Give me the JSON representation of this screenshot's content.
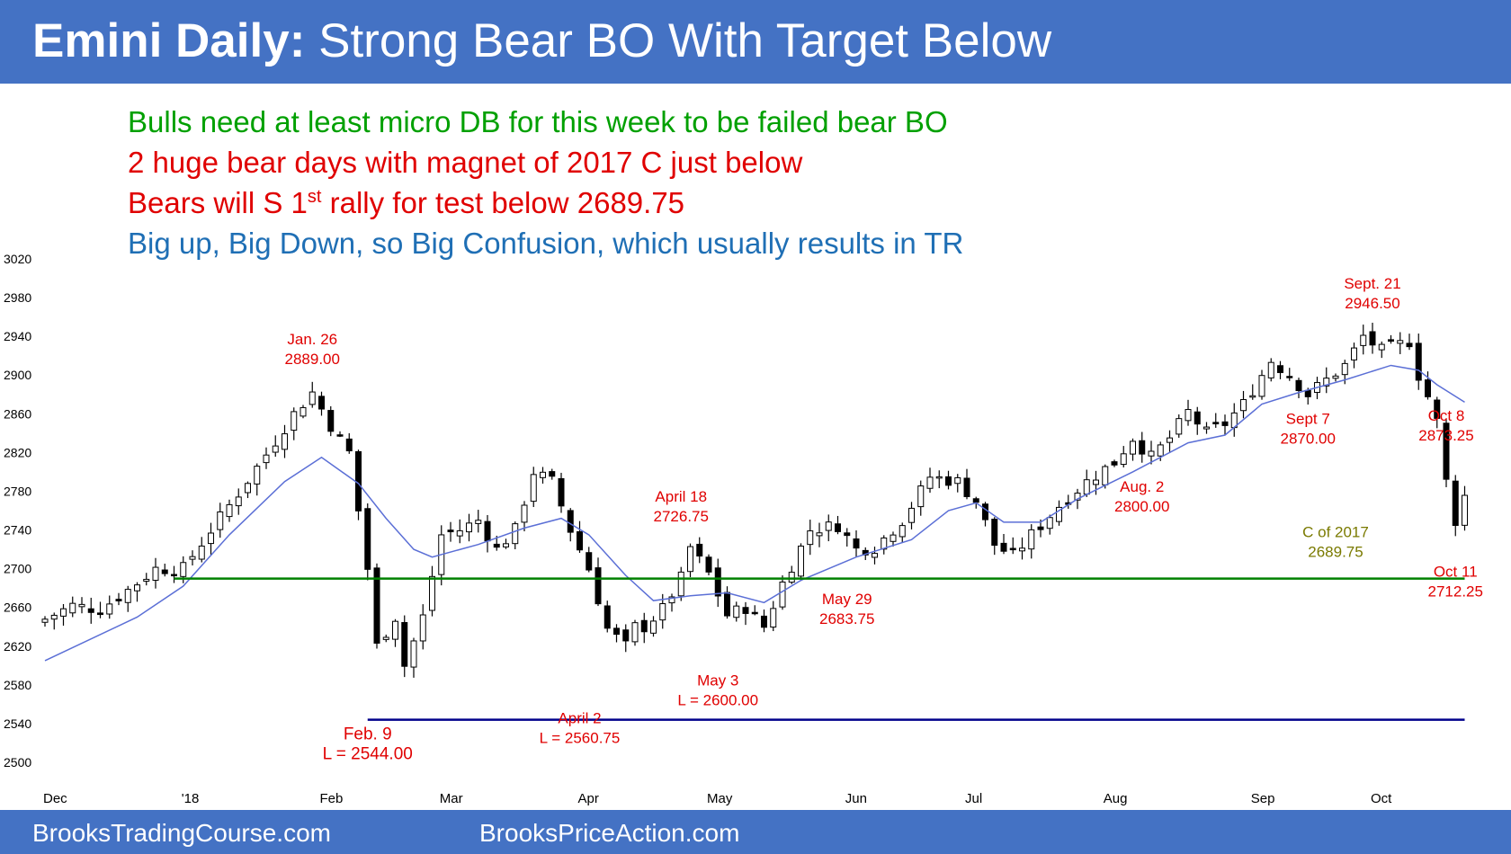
{
  "header": {
    "title_bold": "Emini Daily:",
    "title_rest": "Strong Bear BO With Target Below",
    "bg_color": "#4472c4"
  },
  "notes": [
    {
      "text": "Bulls need at least micro DB for this week to be failed bear BO",
      "color": "#00a000"
    },
    {
      "text": "2 huge bear days with magnet of 2017 C just below",
      "color": "#e00000"
    },
    {
      "text_pre": "Bears will S 1",
      "text_sup": "st",
      "text_post": " rally for test below 2689.75",
      "color": "#e00000"
    },
    {
      "text": "Big up, Big Down, so Big Confusion, which usually results in TR",
      "color": "#1f6fb5"
    }
  ],
  "footer": {
    "left": "BrooksTradingCourse.com",
    "right": "BrooksPriceAction.com"
  },
  "chart_data": {
    "type": "candlestick",
    "y_ticks": [
      3020,
      2980,
      2940,
      2900,
      2860,
      2820,
      2780,
      2740,
      2700,
      2660,
      2620,
      2580,
      2540,
      2500
    ],
    "x_labels": [
      "Dec",
      "'18",
      "Feb",
      "Mar",
      "Apr",
      "May",
      "Jun",
      "Jul",
      "Aug",
      "Sep",
      "Oct"
    ],
    "x_label_bars": [
      0,
      15,
      30,
      43,
      58,
      72,
      87,
      100,
      115,
      131,
      144
    ],
    "ylim": [
      2500,
      3020
    ],
    "bars_total": 151,
    "anchors": [
      [
        0,
        2648
      ],
      [
        3,
        2662
      ],
      [
        6,
        2658
      ],
      [
        9,
        2678
      ],
      [
        12,
        2700
      ],
      [
        15,
        2700
      ],
      [
        18,
        2740
      ],
      [
        21,
        2778
      ],
      [
        24,
        2818
      ],
      [
        27,
        2860
      ],
      [
        29,
        2882
      ],
      [
        31,
        2848
      ],
      [
        33,
        2820
      ],
      [
        35,
        2700
      ],
      [
        36,
        2620
      ],
      [
        38,
        2650
      ],
      [
        39,
        2600
      ],
      [
        41,
        2650
      ],
      [
        43,
        2735
      ],
      [
        45,
        2740
      ],
      [
        47,
        2750
      ],
      [
        49,
        2720
      ],
      [
        51,
        2740
      ],
      [
        53,
        2800
      ],
      [
        55,
        2790
      ],
      [
        57,
        2740
      ],
      [
        59,
        2700
      ],
      [
        61,
        2638
      ],
      [
        63,
        2620
      ],
      [
        64,
        2640
      ],
      [
        65,
        2640
      ],
      [
        67,
        2658
      ],
      [
        69,
        2690
      ],
      [
        70,
        2722
      ],
      [
        72,
        2695
      ],
      [
        74,
        2652
      ],
      [
        76,
        2660
      ],
      [
        78,
        2640
      ],
      [
        80,
        2685
      ],
      [
        83,
        2740
      ],
      [
        86,
        2745
      ],
      [
        88,
        2720
      ],
      [
        90,
        2722
      ],
      [
        93,
        2750
      ],
      [
        96,
        2795
      ],
      [
        99,
        2790
      ],
      [
        101,
        2770
      ],
      [
        103,
        2725
      ],
      [
        105,
        2713
      ],
      [
        107,
        2735
      ],
      [
        110,
        2765
      ],
      [
        113,
        2790
      ],
      [
        116,
        2810
      ],
      [
        118,
        2835
      ],
      [
        120,
        2815
      ],
      [
        122,
        2835
      ],
      [
        124,
        2862
      ],
      [
        126,
        2840
      ],
      [
        128,
        2850
      ],
      [
        130,
        2870
      ],
      [
        133,
        2915
      ],
      [
        135,
        2900
      ],
      [
        137,
        2880
      ],
      [
        139,
        2895
      ],
      [
        141,
        2910
      ],
      [
        143,
        2940
      ],
      [
        145,
        2925
      ],
      [
        148,
        2935
      ],
      [
        149,
        2900
      ],
      [
        150,
        2878
      ],
      [
        151,
        2852
      ],
      [
        152,
        2790
      ],
      [
        153,
        2750
      ],
      [
        154,
        2775
      ]
    ],
    "moving_average": [
      [
        0,
        2605
      ],
      [
        10,
        2650
      ],
      [
        15,
        2682
      ],
      [
        20,
        2735
      ],
      [
        26,
        2790
      ],
      [
        30,
        2815
      ],
      [
        34,
        2788
      ],
      [
        37,
        2752
      ],
      [
        40,
        2720
      ],
      [
        42,
        2712
      ],
      [
        47,
        2725
      ],
      [
        52,
        2742
      ],
      [
        56,
        2752
      ],
      [
        59,
        2735
      ],
      [
        63,
        2693
      ],
      [
        66,
        2667
      ],
      [
        70,
        2672
      ],
      [
        74,
        2675
      ],
      [
        78,
        2665
      ],
      [
        82,
        2688
      ],
      [
        88,
        2712
      ],
      [
        94,
        2730
      ],
      [
        98,
        2760
      ],
      [
        101,
        2768
      ],
      [
        104,
        2748
      ],
      [
        108,
        2748
      ],
      [
        112,
        2772
      ],
      [
        118,
        2800
      ],
      [
        124,
        2830
      ],
      [
        128,
        2838
      ],
      [
        132,
        2870
      ],
      [
        136,
        2882
      ],
      [
        141,
        2895
      ],
      [
        146,
        2910
      ],
      [
        149,
        2905
      ],
      [
        151,
        2890
      ],
      [
        154,
        2872
      ]
    ],
    "reference_lines": [
      {
        "name": "C of 2017",
        "value": 2689.75,
        "color": "#008000",
        "from_bar": 14,
        "to_bar": 154
      },
      {
        "name": "Feb. 9 low",
        "value": 2544.0,
        "color": "#00008b",
        "from_bar": 35,
        "to_bar": 154
      }
    ],
    "annotations": [
      {
        "line1": "Jan. 26",
        "line2": "2889.00",
        "bar": 29,
        "value": 2889.0,
        "pos": "above",
        "color": "#e00000"
      },
      {
        "line1": "Feb. 9",
        "line2": "L = 2544.00",
        "bar": 35,
        "value": 2544.0,
        "pos": "below",
        "color": "#e00000"
      },
      {
        "line1": "April 2",
        "line2": "L = 2560.75",
        "bar": 58,
        "value": 2560.75,
        "pos": "below",
        "color": "#e00000"
      },
      {
        "line1": "April 18",
        "line2": "2726.75",
        "bar": 69,
        "value": 2726.75,
        "pos": "above",
        "color": "#e00000"
      },
      {
        "line1": "May 3",
        "line2": "L = 2600.00",
        "bar": 73,
        "value": 2600.0,
        "pos": "below",
        "color": "#e00000"
      },
      {
        "line1": "May 29",
        "line2": "2683.75",
        "bar": 87,
        "value": 2683.75,
        "pos": "below",
        "color": "#e00000"
      },
      {
        "line1": "Aug. 2",
        "line2": "2800.00",
        "bar": 119,
        "value": 2800.0,
        "pos": "below",
        "color": "#e00000"
      },
      {
        "line1": "Sept 7",
        "line2": "2870.00",
        "bar": 137,
        "value": 2870.0,
        "pos": "below",
        "color": "#e00000"
      },
      {
        "line1": "Sept. 21",
        "line2": "2946.50",
        "bar": 144,
        "value": 2946.5,
        "pos": "above",
        "color": "#e00000"
      },
      {
        "line1": "Oct 8",
        "line2": "2873.25",
        "bar": 152,
        "value": 2873.25,
        "pos": "below",
        "color": "#e00000"
      },
      {
        "line1": "Oct 11",
        "line2": "2712.25",
        "bar": 153,
        "value": 2712.25,
        "pos": "below",
        "color": "#e00000"
      },
      {
        "line1": "C of 2017",
        "line2": "2689.75",
        "bar": 140,
        "value": 2689.75,
        "pos": "above",
        "color": "#7a7a00"
      }
    ]
  }
}
